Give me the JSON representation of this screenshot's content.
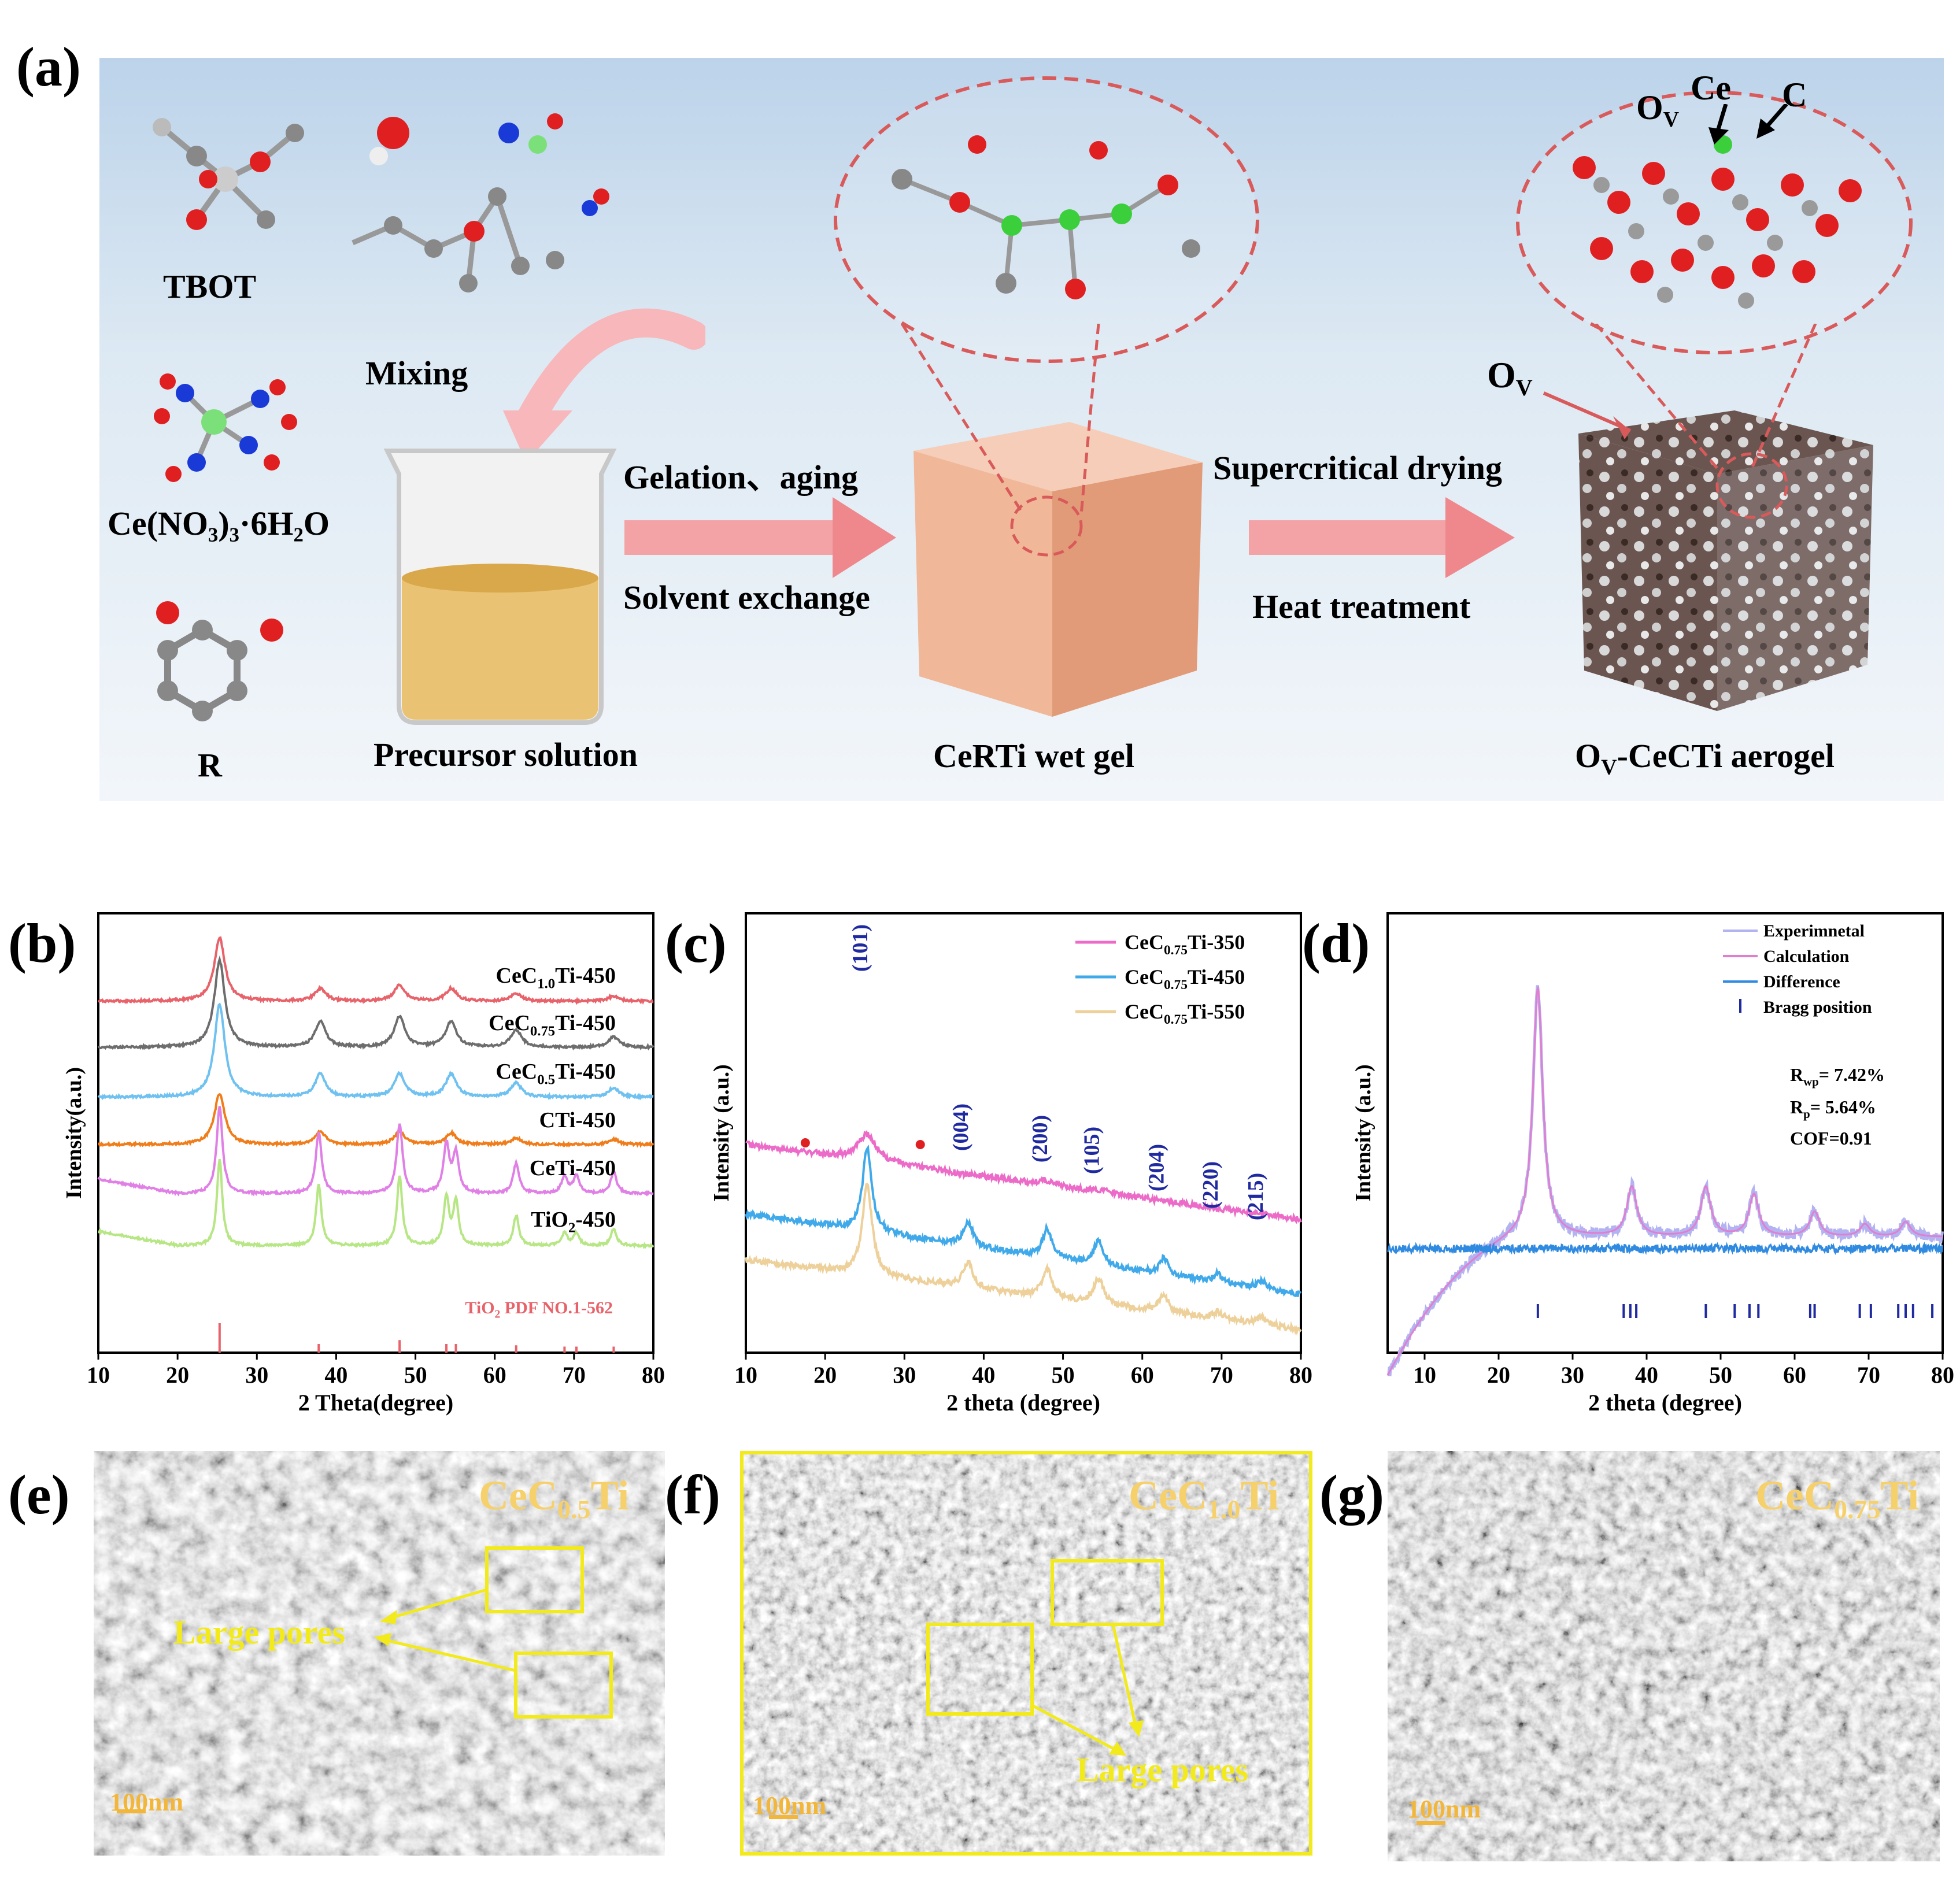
{
  "panels": {
    "a": {
      "label": "(a)",
      "molecules": {
        "tbot": "TBOT",
        "ce_salt": "Ce(NO₃)₃·6H₂O",
        "resorcinol": "R"
      },
      "steps": {
        "mixing": "Mixing",
        "gelation": "Gelation、aging",
        "solvent": "Solvent exchange",
        "supercritical": "Supercritical  drying",
        "heat": "Heat treatment"
      },
      "products": {
        "precursor": "Precursor solution",
        "wetgel": "CeRTi wet gel",
        "aerogel_main": "O",
        "aerogel_sub": "V",
        "aerogel_rest": "-CeCTi aerogel"
      },
      "ov_label": "O",
      "ov_sub": "V",
      "atom_labels": {
        "ov": "O",
        "ov_sub": "V",
        "ce": "Ce",
        "c": "C"
      }
    },
    "b": {
      "label": "(b)"
    },
    "c": {
      "label": "(c)"
    },
    "d": {
      "label": "(d)"
    },
    "e": {
      "label": "(e)",
      "title_main": "CeC",
      "title_sub": "0.5",
      "title_end": "Ti",
      "annotation": "Large pores",
      "scale": "100nm"
    },
    "f": {
      "label": "(f)",
      "title_main": "CeC",
      "title_sub": "1.0",
      "title_end": "Ti",
      "annotation": "Large pores",
      "scale": "100nm"
    },
    "g": {
      "label": "(g)",
      "title_main": "CeC",
      "title_sub": "0.75",
      "title_end": "Ti",
      "scale": "100nm"
    }
  },
  "chart_data": [
    {
      "id": "b",
      "type": "line",
      "xlabel": "2 Theta(degree)",
      "ylabel": "Intensity(a.u.)",
      "xlim": [
        10,
        80
      ],
      "xticks": [
        10,
        20,
        30,
        40,
        50,
        60,
        70,
        80
      ],
      "series": [
        {
          "name": "CeC1.0Ti-450",
          "color": "#e8626a",
          "peaks": [
            [
              25.3,
              1.0
            ],
            [
              38,
              0.2
            ],
            [
              48,
              0.25
            ],
            [
              54.5,
              0.2
            ],
            [
              62.7,
              0.12
            ],
            [
              75,
              0.08
            ]
          ]
        },
        {
          "name": "CeC0.75Ti-450",
          "color": "#6d6d6d",
          "peaks": [
            [
              25.3,
              1.0
            ],
            [
              38,
              0.3
            ],
            [
              48,
              0.35
            ],
            [
              54.5,
              0.3
            ],
            [
              62.7,
              0.2
            ],
            [
              75,
              0.12
            ]
          ]
        },
        {
          "name": "CeC0.5Ti-450",
          "color": "#6ec1f0",
          "peaks": [
            [
              25.3,
              1.0
            ],
            [
              38,
              0.25
            ],
            [
              48,
              0.25
            ],
            [
              54.5,
              0.25
            ],
            [
              62.7,
              0.15
            ],
            [
              75,
              0.1
            ]
          ]
        },
        {
          "name": "CTi-450",
          "color": "#f07d1a",
          "peaks": [
            [
              25.3,
              0.8
            ],
            [
              38,
              0.2
            ],
            [
              48,
              0.2
            ],
            [
              54.5,
              0.18
            ],
            [
              62.7,
              0.1
            ],
            [
              75,
              0.08
            ]
          ]
        },
        {
          "name": "CeTi-450",
          "color": "#e07fe6",
          "peaks": [
            [
              25.3,
              1.0
            ],
            [
              37.8,
              0.7
            ],
            [
              48,
              0.8
            ],
            [
              53.9,
              0.55
            ],
            [
              55.1,
              0.45
            ],
            [
              62.7,
              0.35
            ],
            [
              68.8,
              0.2
            ],
            [
              70.3,
              0.2
            ],
            [
              75,
              0.25
            ]
          ]
        },
        {
          "name": "TiO2-450",
          "color": "#b7e685",
          "peaks": [
            [
              25.3,
              1.0
            ],
            [
              37.8,
              0.7
            ],
            [
              48,
              0.8
            ],
            [
              53.9,
              0.55
            ],
            [
              55.1,
              0.5
            ],
            [
              62.7,
              0.35
            ],
            [
              68.8,
              0.15
            ],
            [
              70.3,
              0.15
            ],
            [
              75,
              0.2
            ]
          ]
        }
      ],
      "labels": [
        {
          "main": "CeC",
          "sub": "1.0",
          "end": "Ti-450"
        },
        {
          "main": "CeC",
          "sub": "0.75",
          "end": "Ti-450"
        },
        {
          "main": "CeC",
          "sub": "0.5",
          "end": "Ti-450"
        },
        {
          "main": "CTi-450",
          "sub": "",
          "end": ""
        },
        {
          "main": "CeTi-450",
          "sub": "",
          "end": ""
        },
        {
          "main": "TiO",
          "sub": "2",
          "end": "-450"
        }
      ],
      "reference": {
        "main": "TiO",
        "sub": "2",
        "end": " PDF NO.1-562",
        "color": "#e8626a",
        "lines": [
          [
            25.3,
            1.0
          ],
          [
            37.8,
            0.2
          ],
          [
            48.0,
            0.35
          ],
          [
            53.9,
            0.2
          ],
          [
            55.1,
            0.2
          ],
          [
            62.7,
            0.15
          ],
          [
            68.8,
            0.1
          ],
          [
            70.3,
            0.1
          ],
          [
            75.0,
            0.1
          ]
        ]
      }
    },
    {
      "id": "c",
      "type": "line",
      "xlabel": "2 theta (degree)",
      "ylabel": "Intensity (a.u.)",
      "xlim": [
        10,
        80
      ],
      "xticks": [
        10,
        20,
        30,
        40,
        50,
        60,
        70,
        80
      ],
      "series": [
        {
          "name": "CeC0.75Ti-350",
          "color": "#ec6ac8",
          "peaks": [
            [
              25.3,
              0.35
            ],
            [
              48,
              0.06
            ],
            [
              55,
              0.04
            ]
          ]
        },
        {
          "name": "CeC0.75Ti-450",
          "color": "#3fa9ea",
          "peaks": [
            [
              25.3,
              1.0
            ],
            [
              38,
              0.3
            ],
            [
              48,
              0.35
            ],
            [
              54.5,
              0.3
            ],
            [
              62.7,
              0.2
            ],
            [
              69.5,
              0.1
            ],
            [
              75,
              0.1
            ]
          ]
        },
        {
          "name": "CeC0.75Ti-550",
          "color": "#edd09a",
          "peaks": [
            [
              25.3,
              1.0
            ],
            [
              38,
              0.28
            ],
            [
              48,
              0.32
            ],
            [
              54.5,
              0.28
            ],
            [
              62.7,
              0.18
            ],
            [
              69.5,
              0.08
            ],
            [
              75,
              0.08
            ]
          ]
        }
      ],
      "legend": [
        {
          "main": "CeC",
          "sub": "0.75",
          "end": "Ti-350"
        },
        {
          "main": "CeC",
          "sub": "0.75",
          "end": "Ti-450"
        },
        {
          "main": "CeC",
          "sub": "0.75",
          "end": "Ti-550"
        }
      ],
      "annotations": [
        "(101)",
        "(004)",
        "(200)",
        "(105)",
        "(204)",
        "(220)",
        "(215)"
      ]
    },
    {
      "id": "d",
      "type": "line",
      "xlabel": "2 theta (degree)",
      "ylabel": "Intensity (a.u.)",
      "xlim": [
        5,
        80
      ],
      "xticks": [
        10,
        20,
        30,
        40,
        50,
        60,
        70,
        80
      ],
      "legend": [
        "Experimnetal",
        "Calculation",
        "Difference",
        "Bragg position"
      ],
      "stats": {
        "rwp_main": "R",
        "rwp_sub": "wp",
        "rwp_val": "= 7.42%",
        "rp_main": "R",
        "rp_sub": "p",
        "rp_val": "= 5.64%",
        "cof": "COF=0.91"
      },
      "bragg": [
        25.3,
        36.9,
        37.8,
        38.6,
        48.0,
        51.9,
        53.9,
        55.1,
        62.1,
        62.7,
        68.8,
        70.3,
        74.0,
        75.0,
        76.0,
        78.6
      ]
    }
  ]
}
